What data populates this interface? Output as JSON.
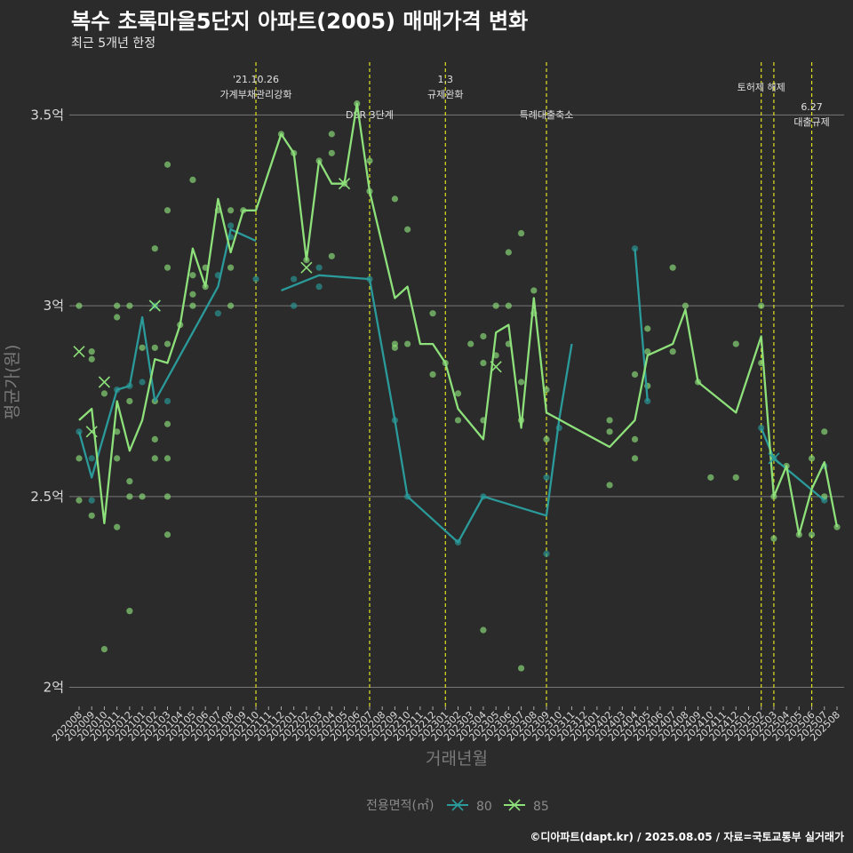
{
  "title": "복수 초록마을5단지 아파트(2005) 매매가격 변화",
  "subtitle": "최근 5개년 한정",
  "caption": "©디아파트(dapt.kr) / 2025.08.05 / 자료=국토교통부 실거래가",
  "colors": {
    "s80": "#2a9a9a",
    "s85": "#8de07a",
    "vline": "#e0e020",
    "grid": "#777777",
    "background": "#2b2b2b"
  },
  "chart_data": {
    "type": "line",
    "xlabel": "거래년월",
    "ylabel": "평균가(원)",
    "ylim": [
      1.95,
      3.65
    ],
    "yticks": [
      2.0,
      2.5,
      3.0,
      3.5
    ],
    "ytick_labels": [
      "2억",
      "2.5억",
      "3억",
      "3.5억"
    ],
    "categories": [
      "202008",
      "202009",
      "202010",
      "202011",
      "202012",
      "202101",
      "202102",
      "202103",
      "202104",
      "202105",
      "202106",
      "202107",
      "202108",
      "202109",
      "202110",
      "202111",
      "202112",
      "202201",
      "202202",
      "202203",
      "202204",
      "202205",
      "202206",
      "202207",
      "202208",
      "202209",
      "202210",
      "202211",
      "202212",
      "202301",
      "202302",
      "202303",
      "202304",
      "202305",
      "202306",
      "202307",
      "202308",
      "202309",
      "202310",
      "202311",
      "202312",
      "202401",
      "202402",
      "202403",
      "202404",
      "202405",
      "202406",
      "202407",
      "202408",
      "202409",
      "202410",
      "202411",
      "202412",
      "202501",
      "202502",
      "202503",
      "202504",
      "202505",
      "202506",
      "202507",
      "202508"
    ],
    "x_month_range": [
      "202008",
      "202508"
    ],
    "legend_title": "전용면적(㎡)",
    "legend_position": "bottom",
    "series": [
      {
        "name": "80",
        "color_key": "s80",
        "segments": [
          [
            [
              "202008",
              2.67
            ],
            [
              "202009",
              2.55
            ],
            [
              "202011",
              2.78
            ],
            [
              "202012",
              2.79
            ],
            [
              "202101",
              2.97
            ],
            [
              "202102",
              2.75
            ],
            [
              "202107",
              3.05
            ],
            [
              "202108",
              3.2
            ],
            [
              "202110",
              3.17
            ]
          ],
          [
            [
              "202112",
              3.04
            ],
            [
              "202203",
              3.08
            ],
            [
              "202207",
              3.07
            ],
            [
              "202209",
              2.7
            ],
            [
              "202210",
              2.5
            ],
            [
              "202302",
              2.38
            ],
            [
              "202304",
              2.5
            ],
            [
              "202309",
              2.45
            ],
            [
              "202310",
              2.7
            ],
            [
              "202311",
              2.9
            ]
          ],
          [
            [
              "202404",
              3.15
            ],
            [
              "202405",
              2.75
            ]
          ],
          [
            [
              "202502",
              2.68
            ],
            [
              "202503",
              2.6
            ],
            [
              "202507",
              2.49
            ]
          ]
        ],
        "points": [
          [
            "202008",
            2.67
          ],
          [
            "202009",
            2.49
          ],
          [
            "202009",
            2.6
          ],
          [
            "202011",
            2.78
          ],
          [
            "202012",
            2.79
          ],
          [
            "202101",
            2.8
          ],
          [
            "202102",
            3.0
          ],
          [
            "202103",
            2.75
          ],
          [
            "202107",
            3.08
          ],
          [
            "202107",
            2.98
          ],
          [
            "202108",
            3.18
          ],
          [
            "202108",
            3.21
          ],
          [
            "202110",
            3.07
          ],
          [
            "202201",
            3.07
          ],
          [
            "202201",
            3.0
          ],
          [
            "202203",
            3.05
          ],
          [
            "202203",
            3.1
          ],
          [
            "202207",
            3.07
          ],
          [
            "202209",
            2.7
          ],
          [
            "202210",
            2.5
          ],
          [
            "202302",
            2.38
          ],
          [
            "202304",
            2.5
          ],
          [
            "202309",
            2.55
          ],
          [
            "202309",
            2.35
          ],
          [
            "202310",
            2.68
          ],
          [
            "202404",
            3.15
          ],
          [
            "202405",
            2.75
          ],
          [
            "202502",
            2.68
          ],
          [
            "202503",
            2.6
          ],
          [
            "202507",
            2.49
          ],
          [
            "202507",
            2.58
          ]
        ],
        "x_marks": [
          [
            "202102",
            3.0
          ],
          [
            "202503",
            2.6
          ]
        ]
      },
      {
        "name": "85",
        "color_key": "s85",
        "segments": [
          [
            [
              "202008",
              2.7
            ],
            [
              "202009",
              2.73
            ],
            [
              "202010",
              2.43
            ],
            [
              "202011",
              2.75
            ],
            [
              "202012",
              2.62
            ],
            [
              "202101",
              2.7
            ],
            [
              "202102",
              2.86
            ],
            [
              "202103",
              2.85
            ],
            [
              "202104",
              2.95
            ],
            [
              "202105",
              3.15
            ],
            [
              "202106",
              3.05
            ],
            [
              "202107",
              3.28
            ],
            [
              "202108",
              3.14
            ],
            [
              "202109",
              3.25
            ],
            [
              "202110",
              3.25
            ],
            [
              "202112",
              3.45
            ],
            [
              "202201",
              3.4
            ],
            [
              "202202",
              3.12
            ],
            [
              "202203",
              3.38
            ],
            [
              "202204",
              3.32
            ],
            [
              "202205",
              3.32
            ],
            [
              "202206",
              3.53
            ],
            [
              "202207",
              3.3
            ],
            [
              "202209",
              3.02
            ],
            [
              "202210",
              3.05
            ],
            [
              "202211",
              2.9
            ],
            [
              "202212",
              2.9
            ],
            [
              "202301",
              2.85
            ],
            [
              "202302",
              2.73
            ],
            [
              "202304",
              2.65
            ],
            [
              "202305",
              2.93
            ],
            [
              "202306",
              2.95
            ],
            [
              "202307",
              2.68
            ],
            [
              "202308",
              3.02
            ],
            [
              "202309",
              2.72
            ],
            [
              "202402",
              2.63
            ],
            [
              "202404",
              2.7
            ],
            [
              "202405",
              2.87
            ],
            [
              "202407",
              2.9
            ],
            [
              "202408",
              2.99
            ],
            [
              "202409",
              2.8
            ],
            [
              "202412",
              2.72
            ],
            [
              "202502",
              2.92
            ],
            [
              "202503",
              2.5
            ],
            [
              "202504",
              2.58
            ],
            [
              "202505",
              2.4
            ],
            [
              "202506",
              2.52
            ],
            [
              "202507",
              2.59
            ],
            [
              "202508",
              2.42
            ]
          ]
        ],
        "points": [
          [
            "202008",
            3.0
          ],
          [
            "202008",
            2.6
          ],
          [
            "202008",
            2.49
          ],
          [
            "202009",
            2.88
          ],
          [
            "202009",
            2.86
          ],
          [
            "202009",
            2.45
          ],
          [
            "202010",
            2.77
          ],
          [
            "202010",
            2.1
          ],
          [
            "202011",
            3.0
          ],
          [
            "202011",
            2.97
          ],
          [
            "202011",
            2.67
          ],
          [
            "202011",
            2.6
          ],
          [
            "202011",
            2.42
          ],
          [
            "202012",
            3.0
          ],
          [
            "202012",
            2.75
          ],
          [
            "202012",
            2.54
          ],
          [
            "202012",
            2.5
          ],
          [
            "202012",
            2.2
          ],
          [
            "202101",
            2.89
          ],
          [
            "202101",
            2.5
          ],
          [
            "202102",
            3.15
          ],
          [
            "202102",
            2.89
          ],
          [
            "202102",
            2.75
          ],
          [
            "202102",
            2.65
          ],
          [
            "202102",
            2.6
          ],
          [
            "202103",
            3.37
          ],
          [
            "202103",
            3.25
          ],
          [
            "202103",
            3.1
          ],
          [
            "202103",
            2.9
          ],
          [
            "202103",
            2.69
          ],
          [
            "202103",
            2.6
          ],
          [
            "202103",
            2.5
          ],
          [
            "202103",
            2.4
          ],
          [
            "202104",
            2.95
          ],
          [
            "202105",
            3.33
          ],
          [
            "202105",
            3.08
          ],
          [
            "202105",
            3.03
          ],
          [
            "202105",
            3.0
          ],
          [
            "202106",
            3.1
          ],
          [
            "202106",
            3.05
          ],
          [
            "202107",
            3.25
          ],
          [
            "202108",
            3.25
          ],
          [
            "202108",
            3.1
          ],
          [
            "202108",
            3.0
          ],
          [
            "202109",
            3.25
          ],
          [
            "202112",
            3.45
          ],
          [
            "202201",
            3.4
          ],
          [
            "202202",
            3.12
          ],
          [
            "202203",
            3.38
          ],
          [
            "202204",
            3.45
          ],
          [
            "202204",
            3.4
          ],
          [
            "202204",
            3.13
          ],
          [
            "202205",
            3.32
          ],
          [
            "202206",
            3.53
          ],
          [
            "202207",
            3.38
          ],
          [
            "202207",
            3.3
          ],
          [
            "202209",
            3.28
          ],
          [
            "202209",
            2.9
          ],
          [
            "202209",
            2.89
          ],
          [
            "202210",
            3.2
          ],
          [
            "202210",
            2.9
          ],
          [
            "202212",
            2.98
          ],
          [
            "202212",
            2.82
          ],
          [
            "202301",
            2.85
          ],
          [
            "202302",
            2.77
          ],
          [
            "202302",
            2.7
          ],
          [
            "202303",
            2.9
          ],
          [
            "202304",
            2.92
          ],
          [
            "202304",
            2.85
          ],
          [
            "202304",
            2.7
          ],
          [
            "202304",
            2.15
          ],
          [
            "202305",
            3.0
          ],
          [
            "202305",
            2.87
          ],
          [
            "202306",
            3.14
          ],
          [
            "202306",
            3.0
          ],
          [
            "202306",
            2.9
          ],
          [
            "202307",
            3.19
          ],
          [
            "202307",
            2.8
          ],
          [
            "202307",
            2.7
          ],
          [
            "202307",
            2.05
          ],
          [
            "202308",
            3.04
          ],
          [
            "202308",
            2.98
          ],
          [
            "202309",
            2.78
          ],
          [
            "202309",
            2.65
          ],
          [
            "202402",
            2.7
          ],
          [
            "202402",
            2.67
          ],
          [
            "202402",
            2.53
          ],
          [
            "202404",
            2.82
          ],
          [
            "202404",
            2.65
          ],
          [
            "202404",
            2.6
          ],
          [
            "202405",
            2.94
          ],
          [
            "202405",
            2.88
          ],
          [
            "202405",
            2.79
          ],
          [
            "202407",
            3.1
          ],
          [
            "202407",
            2.88
          ],
          [
            "202408",
            3.0
          ],
          [
            "202409",
            2.8
          ],
          [
            "202410",
            2.55
          ],
          [
            "202412",
            2.9
          ],
          [
            "202412",
            2.55
          ],
          [
            "202502",
            3.0
          ],
          [
            "202502",
            2.85
          ],
          [
            "202503",
            2.5
          ],
          [
            "202503",
            2.39
          ],
          [
            "202504",
            2.58
          ],
          [
            "202505",
            2.4
          ],
          [
            "202506",
            2.6
          ],
          [
            "202506",
            2.4
          ],
          [
            "202507",
            2.67
          ],
          [
            "202507",
            2.5
          ],
          [
            "202508",
            2.42
          ]
        ],
        "x_marks": [
          [
            "202008",
            2.88
          ],
          [
            "202009",
            2.67
          ],
          [
            "202010",
            2.8
          ],
          [
            "202102",
            3.0
          ],
          [
            "202202",
            3.1
          ],
          [
            "202205",
            3.32
          ],
          [
            "202305",
            2.84
          ]
        ]
      }
    ],
    "events": [
      {
        "month": "202110",
        "label1": "'21.10.26",
        "label2": "가계부채관리강화"
      },
      {
        "month": "202207",
        "label1": "",
        "label2": "DSR 3단계"
      },
      {
        "month": "202301",
        "label1": "1.3",
        "label2": "규제완화"
      },
      {
        "month": "202309",
        "label1": "",
        "label2": "특례대출축소"
      },
      {
        "month": "202502",
        "label1": "",
        "label2": "토허제 해제"
      },
      {
        "month": "202503",
        "label1": "",
        "label2": ""
      },
      {
        "month": "202506",
        "label1": "6.27",
        "label2": "대출규제"
      }
    ]
  }
}
